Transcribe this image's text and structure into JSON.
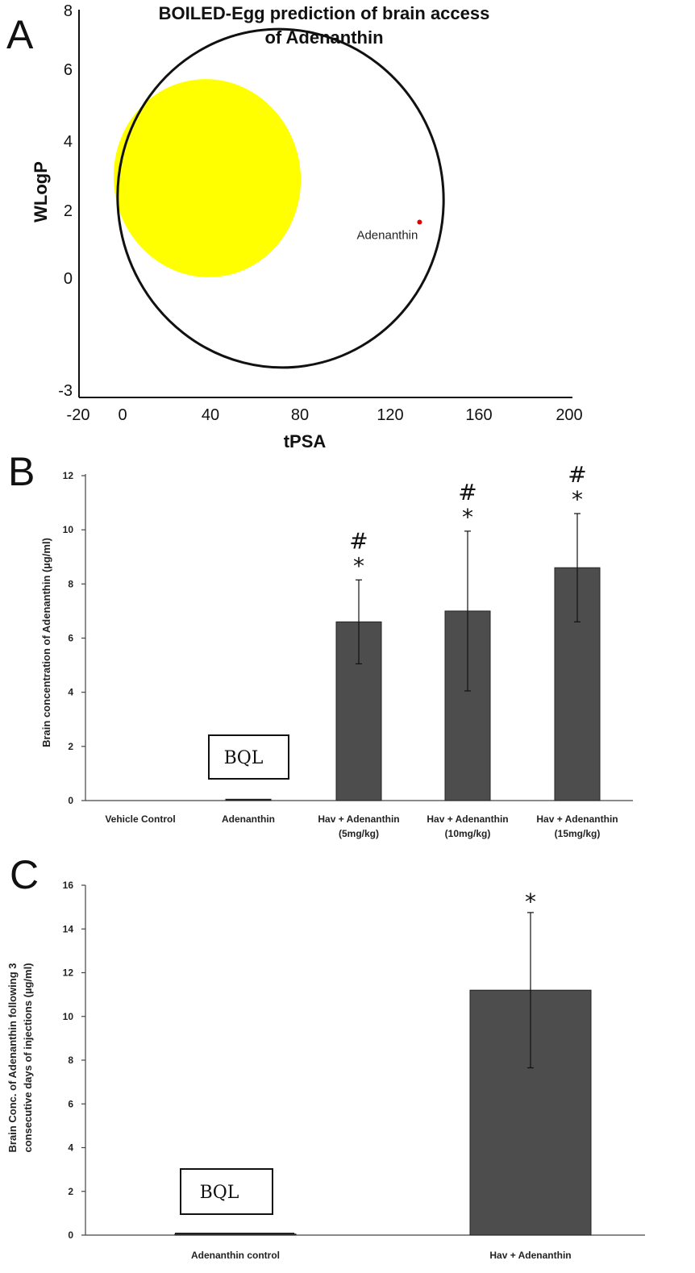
{
  "panels": {
    "a": "A",
    "b": "B",
    "c": "C"
  },
  "chart_data": [
    {
      "type": "scatter",
      "id": "A",
      "title_line1": "BOILED-Egg prediction of brain access",
      "title_line2": "of Adenanthin",
      "xlabel": "tPSA",
      "ylabel": "WLogP",
      "xlim": [
        -20,
        200
      ],
      "ylim": [
        -3,
        8
      ],
      "xticks": [
        "-20",
        "0",
        "40",
        "80",
        "120",
        "160",
        "200"
      ],
      "yticks": [
        "8",
        "6",
        "4",
        "2",
        "0",
        "-3"
      ],
      "regions": {
        "white_ellipse_color": "#ffffff",
        "yolk_color": "#ffff00"
      },
      "points": [
        {
          "label": "Adenanthin",
          "x": 133,
          "y": 1.8,
          "color": "#e00000"
        }
      ]
    },
    {
      "type": "bar",
      "id": "B",
      "ylabel": "Brain concentration of Adenanthin (µg/ml)",
      "ylim": [
        0,
        12
      ],
      "yticks": [
        "0",
        "2",
        "4",
        "6",
        "8",
        "10",
        "12"
      ],
      "categories": [
        {
          "line1": "Vehicle Control",
          "line2": ""
        },
        {
          "line1": "Adenanthin",
          "line2": ""
        },
        {
          "line1": "Hav + Adenanthin",
          "line2": "(5mg/kg)"
        },
        {
          "line1": "Hav + Adenanthin",
          "line2": "(10mg/kg)"
        },
        {
          "line1": "Hav + Adenanthin",
          "line2": "(15mg/kg)"
        }
      ],
      "values": [
        0,
        0.05,
        6.6,
        7.0,
        8.6
      ],
      "errors": [
        0,
        0,
        1.55,
        2.95,
        2.0
      ],
      "markers": [
        "",
        "",
        "*",
        "*",
        "*"
      ],
      "markers_hash": [
        "",
        "",
        "#",
        "#",
        "#"
      ],
      "annotation": {
        "text": "BQL",
        "category_index": 1
      },
      "bar_color": "#4d4d4d"
    },
    {
      "type": "bar",
      "id": "C",
      "ylabel_line1": "Brain Conc. of Adenanthin following 3",
      "ylabel_line2": "consecutive days of injections (µg/ml)",
      "ylim": [
        0,
        16
      ],
      "yticks": [
        "0",
        "2",
        "4",
        "6",
        "8",
        "10",
        "12",
        "14",
        "16"
      ],
      "categories": [
        "Adenanthin control",
        "Hav + Adenanthin"
      ],
      "values": [
        0.05,
        11.2
      ],
      "errors": [
        0,
        3.55
      ],
      "markers": [
        "",
        "*"
      ],
      "annotation": {
        "text": "BQL",
        "category_index": 0
      },
      "bar_color": "#4d4d4d"
    }
  ]
}
